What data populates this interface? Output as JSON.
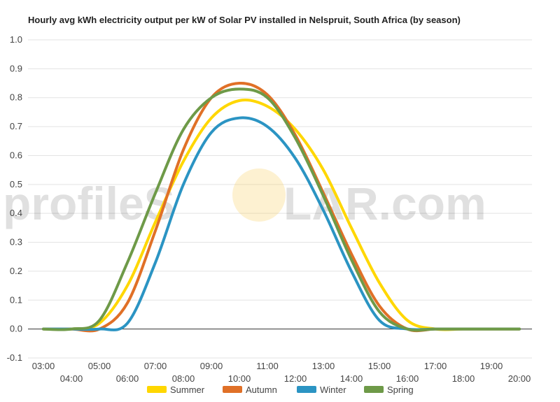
{
  "watermark": {
    "left_text": "profileS",
    "right_text": "LAR.com",
    "sun_color": "#f7c948"
  },
  "chart_data": {
    "type": "line",
    "title": "Hourly avg kWh electricity output per kW of Solar PV installed in Nelspruit, South Africa (by season)",
    "xlabel": "",
    "ylabel": "",
    "x": [
      "03:00",
      "04:00",
      "05:00",
      "06:00",
      "07:00",
      "08:00",
      "09:00",
      "10:00",
      "11:00",
      "12:00",
      "13:00",
      "14:00",
      "15:00",
      "16:00",
      "17:00",
      "18:00",
      "19:00",
      "20:00"
    ],
    "x_tick_labels_upper": [
      "03:00",
      "05:00",
      "07:00",
      "09:00",
      "11:00",
      "13:00",
      "15:00",
      "17:00",
      "19:00"
    ],
    "x_tick_labels_lower": [
      "04:00",
      "06:00",
      "08:00",
      "10:00",
      "12:00",
      "14:00",
      "16:00",
      "18:00",
      "20:00"
    ],
    "ylim": [
      -0.1,
      1.0
    ],
    "y_ticks": [
      "-0.1",
      "0.0",
      "0.1",
      "0.2",
      "0.3",
      "0.4",
      "0.5",
      "0.6",
      "0.7",
      "0.8",
      "0.9",
      "1.0"
    ],
    "grid": true,
    "legend_position": "bottom",
    "series": [
      {
        "name": "Summer",
        "color": "#ffd700",
        "values": [
          0,
          0,
          0.02,
          0.15,
          0.37,
          0.58,
          0.73,
          0.79,
          0.77,
          0.69,
          0.55,
          0.35,
          0.16,
          0.03,
          0,
          0,
          0,
          0
        ]
      },
      {
        "name": "Autumn",
        "color": "#e07027",
        "values": [
          0,
          0,
          0,
          0.09,
          0.34,
          0.62,
          0.8,
          0.85,
          0.81,
          0.67,
          0.47,
          0.26,
          0.08,
          0,
          0,
          0,
          0,
          0
        ]
      },
      {
        "name": "Winter",
        "color": "#2b94c3",
        "values": [
          0,
          0,
          0,
          0.02,
          0.23,
          0.5,
          0.68,
          0.73,
          0.7,
          0.59,
          0.41,
          0.2,
          0.03,
          0,
          0,
          0,
          0,
          0
        ]
      },
      {
        "name": "Spring",
        "color": "#6e9a48",
        "values": [
          0,
          0,
          0.03,
          0.23,
          0.47,
          0.69,
          0.8,
          0.83,
          0.8,
          0.66,
          0.46,
          0.24,
          0.06,
          0,
          0,
          0,
          0,
          0
        ]
      }
    ]
  }
}
